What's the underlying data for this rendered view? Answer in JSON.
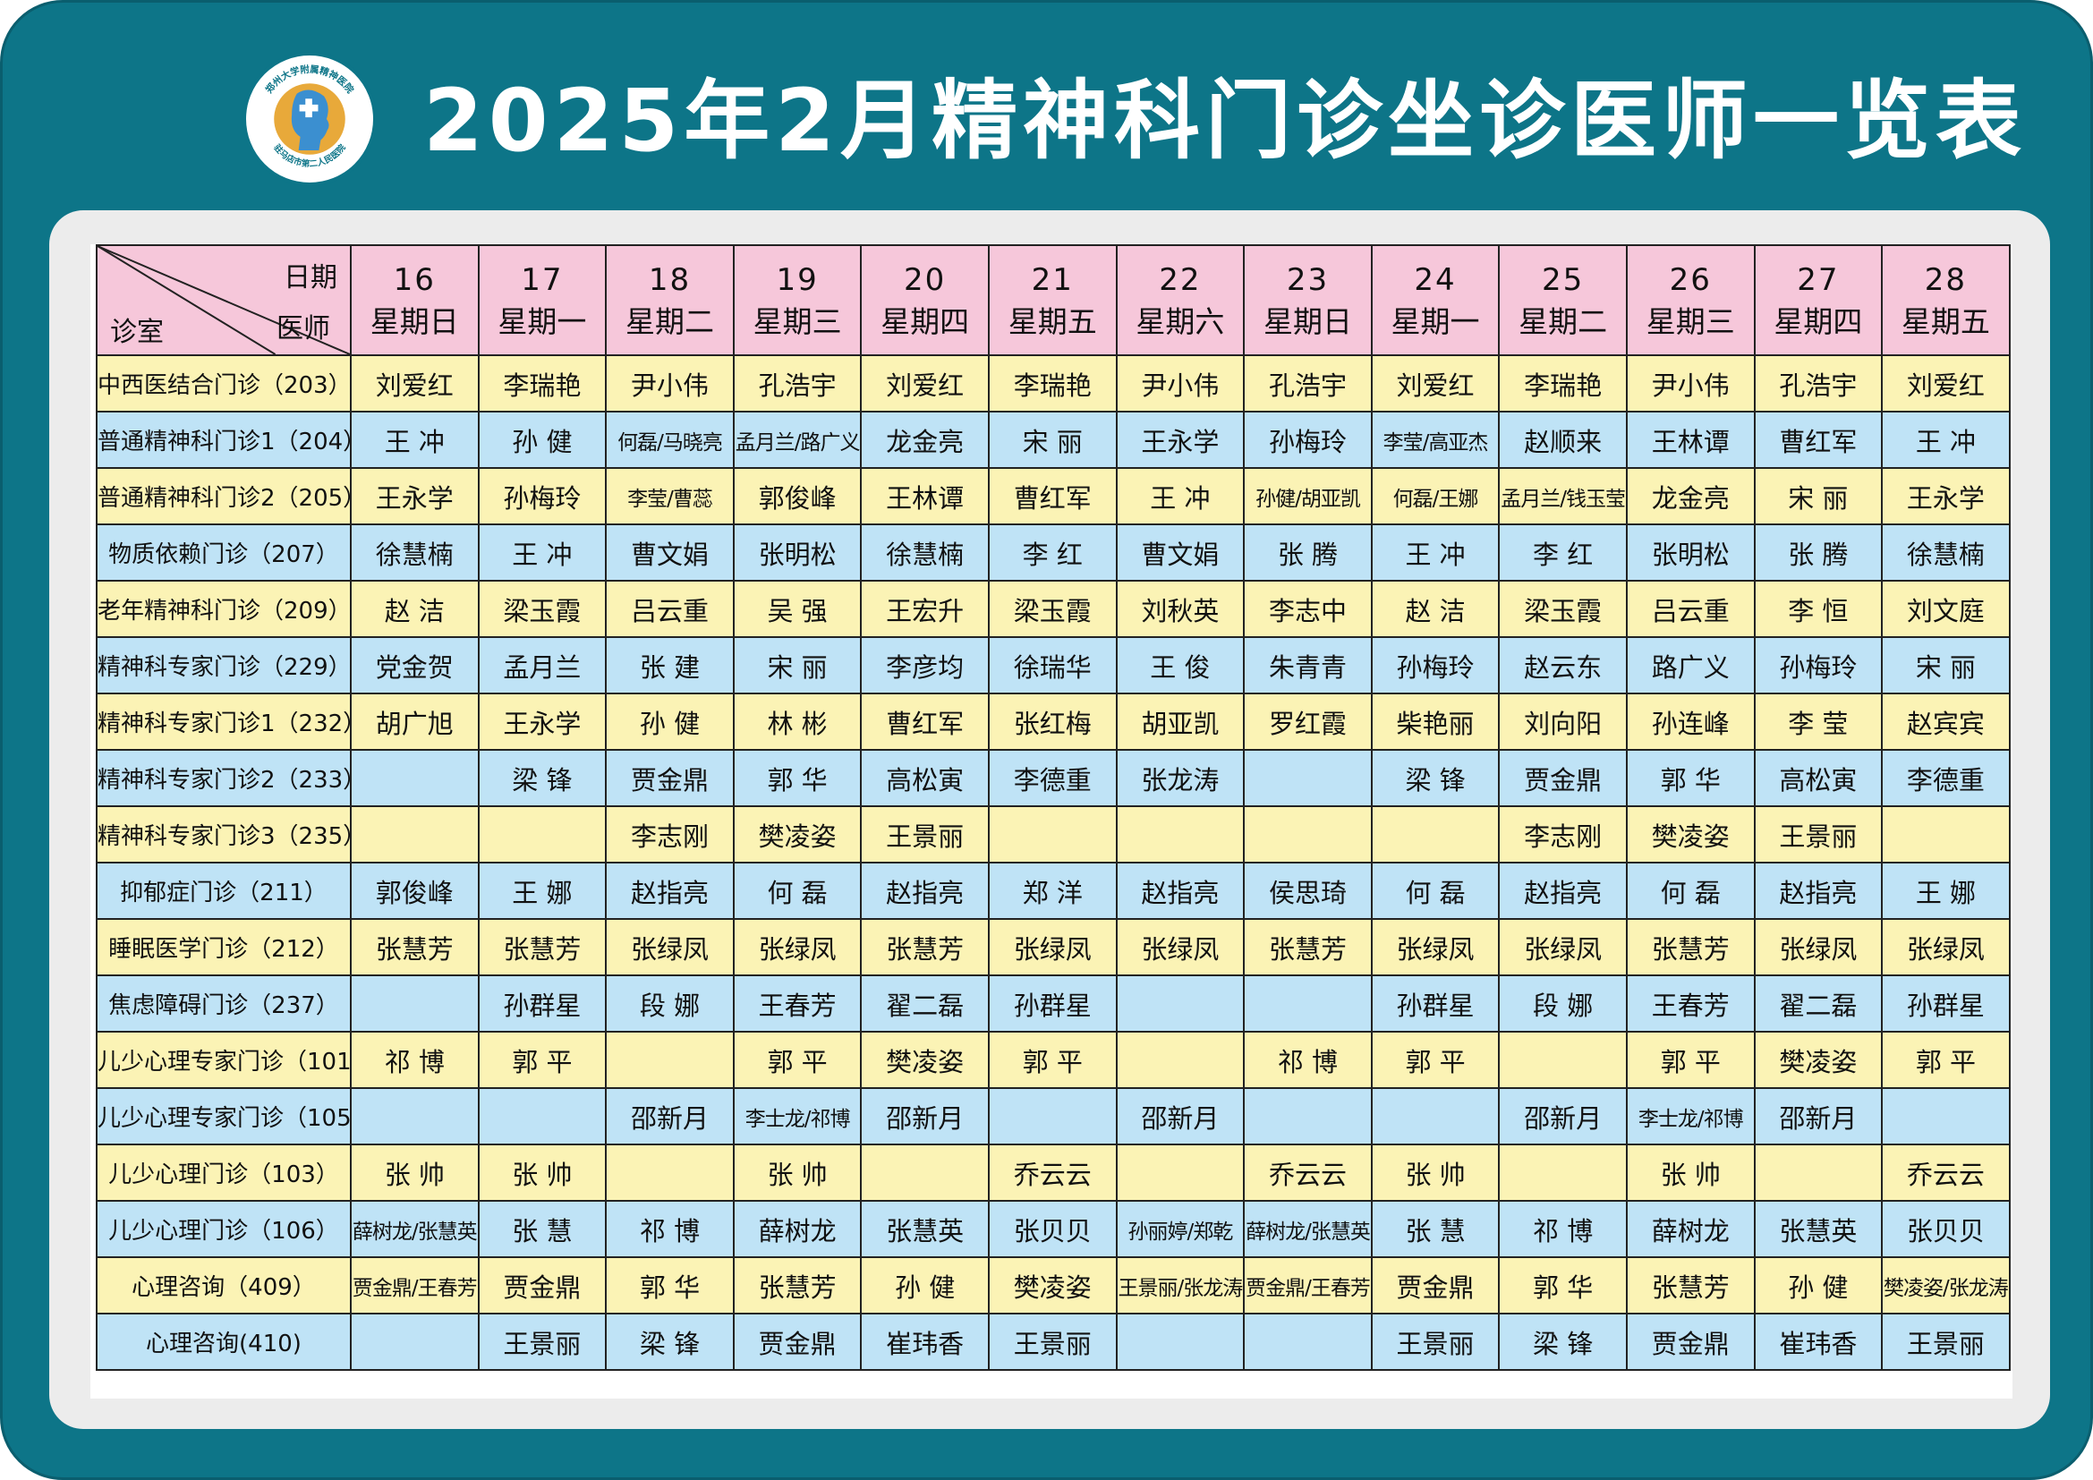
{
  "title": "2025年2月精神科门诊坐诊医师一览表",
  "logo": {
    "text_top": "郑州大学附属精神医院",
    "text_bottom": "驻马店市第二人民医院"
  },
  "corner": {
    "date_label": "日期",
    "doctor_label": "医师",
    "room_label": "诊室"
  },
  "days": [
    {
      "date": "16",
      "weekday": "星期日"
    },
    {
      "date": "17",
      "weekday": "星期一"
    },
    {
      "date": "18",
      "weekday": "星期二"
    },
    {
      "date": "19",
      "weekday": "星期三"
    },
    {
      "date": "20",
      "weekday": "星期四"
    },
    {
      "date": "21",
      "weekday": "星期五"
    },
    {
      "date": "22",
      "weekday": "星期六"
    },
    {
      "date": "23",
      "weekday": "星期日"
    },
    {
      "date": "24",
      "weekday": "星期一"
    },
    {
      "date": "25",
      "weekday": "星期二"
    },
    {
      "date": "26",
      "weekday": "星期三"
    },
    {
      "date": "27",
      "weekday": "星期四"
    },
    {
      "date": "28",
      "weekday": "星期五"
    }
  ],
  "rows": [
    {
      "room": "中西医结合门诊（203）",
      "doctors": [
        "刘爱红",
        "李瑞艳",
        "尹小伟",
        "孔浩宇",
        "刘爱红",
        "李瑞艳",
        "尹小伟",
        "孔浩宇",
        "刘爱红",
        "李瑞艳",
        "尹小伟",
        "孔浩宇",
        "刘爱红"
      ]
    },
    {
      "room": "普通精神科门诊1（204）",
      "doctors": [
        "王 冲",
        "孙 健",
        "何磊/马晓亮",
        "孟月兰/路广义",
        "龙金亮",
        "宋 丽",
        "王永学",
        "孙梅玲",
        "李莹/高亚杰",
        "赵顺来",
        "王林谭",
        "曹红军",
        "王 冲"
      ]
    },
    {
      "room": "普通精神科门诊2（205）",
      "doctors": [
        "王永学",
        "孙梅玲",
        "李莹/曹蕊",
        "郭俊峰",
        "王林谭",
        "曹红军",
        "王 冲",
        "孙健/胡亚凯",
        "何磊/王娜",
        "孟月兰/钱玉莹",
        "龙金亮",
        "宋 丽",
        "王永学"
      ]
    },
    {
      "room": "物质依赖门诊（207）",
      "doctors": [
        "徐慧楠",
        "王 冲",
        "曹文娟",
        "张明松",
        "徐慧楠",
        "李 红",
        "曹文娟",
        "张 腾",
        "王 冲",
        "李 红",
        "张明松",
        "张 腾",
        "徐慧楠"
      ]
    },
    {
      "room": "老年精神科门诊（209）",
      "doctors": [
        "赵 洁",
        "梁玉霞",
        "吕云重",
        "吴 强",
        "王宏升",
        "梁玉霞",
        "刘秋英",
        "李志中",
        "赵 洁",
        "梁玉霞",
        "吕云重",
        "李 恒",
        "刘文庭"
      ]
    },
    {
      "room": "精神科专家门诊（229）",
      "doctors": [
        "党金贺",
        "孟月兰",
        "张 建",
        "宋 丽",
        "李彦均",
        "徐瑞华",
        "王 俊",
        "朱青青",
        "孙梅玲",
        "赵云东",
        "路广义",
        "孙梅玲",
        "宋 丽"
      ]
    },
    {
      "room": "精神科专家门诊1（232）",
      "doctors": [
        "胡广旭",
        "王永学",
        "孙 健",
        "林 彬",
        "曹红军",
        "张红梅",
        "胡亚凯",
        "罗红霞",
        "柴艳丽",
        "刘向阳",
        "孙连峰",
        "李 莹",
        "赵宾宾"
      ]
    },
    {
      "room": "精神科专家门诊2（233）",
      "doctors": [
        "",
        "梁 锋",
        "贾金鼎",
        "郭 华",
        "高松寅",
        "李德重",
        "张龙涛",
        "",
        "梁 锋",
        "贾金鼎",
        "郭 华",
        "高松寅",
        "李德重"
      ]
    },
    {
      "room": "精神科专家门诊3（235）",
      "doctors": [
        "",
        "",
        "李志刚",
        "樊凌姿",
        "王景丽",
        "",
        "",
        "",
        "",
        "李志刚",
        "樊凌姿",
        "王景丽",
        ""
      ]
    },
    {
      "room": "抑郁症门诊（211）",
      "doctors": [
        "郭俊峰",
        "王 娜",
        "赵指亮",
        "何 磊",
        "赵指亮",
        "郑 洋",
        "赵指亮",
        "侯思琦",
        "何 磊",
        "赵指亮",
        "何 磊",
        "赵指亮",
        "王 娜"
      ]
    },
    {
      "room": "睡眠医学门诊（212）",
      "doctors": [
        "张慧芳",
        "张慧芳",
        "张绿凤",
        "张绿凤",
        "张慧芳",
        "张绿凤",
        "张绿凤",
        "张慧芳",
        "张绿凤",
        "张绿凤",
        "张慧芳",
        "张绿凤",
        "张绿凤"
      ]
    },
    {
      "room": "焦虑障碍门诊（237）",
      "doctors": [
        "",
        "孙群星",
        "段 娜",
        "王春芳",
        "翟二磊",
        "孙群星",
        "",
        "",
        "孙群星",
        "段 娜",
        "王春芳",
        "翟二磊",
        "孙群星"
      ]
    },
    {
      "room": "儿少心理专家门诊（101）",
      "doctors": [
        "祁 博",
        "郭 平",
        "",
        "郭 平",
        "樊凌姿",
        "郭 平",
        "",
        "祁 博",
        "郭 平",
        "",
        "郭 平",
        "樊凌姿",
        "郭 平"
      ]
    },
    {
      "room": "儿少心理专家门诊（105）",
      "doctors": [
        "",
        "",
        "邵新月",
        "李士龙/祁博",
        "邵新月",
        "",
        "邵新月",
        "",
        "",
        "邵新月",
        "李士龙/祁博",
        "邵新月",
        ""
      ]
    },
    {
      "room": "儿少心理门诊（103）",
      "doctors": [
        "张 帅",
        "张 帅",
        "",
        "张 帅",
        "",
        "乔云云",
        "",
        "乔云云",
        "张 帅",
        "",
        "张 帅",
        "",
        "乔云云"
      ]
    },
    {
      "room": "儿少心理门诊（106）",
      "doctors": [
        "薛树龙/张慧英",
        "张 慧",
        "祁 博",
        "薛树龙",
        "张慧英",
        "张贝贝",
        "孙丽婷/郑乾",
        "薛树龙/张慧英",
        "张 慧",
        "祁 博",
        "薛树龙",
        "张慧英",
        "张贝贝"
      ]
    },
    {
      "room": "心理咨询（409）",
      "doctors": [
        "贾金鼎/王春芳",
        "贾金鼎",
        "郭 华",
        "张慧芳",
        "孙 健",
        "樊凌姿",
        "王景丽/张龙涛",
        "贾金鼎/王春芳",
        "贾金鼎",
        "郭 华",
        "张慧芳",
        "孙 健",
        "樊凌姿/张龙涛"
      ]
    },
    {
      "room": "心理咨询(410)",
      "doctors": [
        "",
        "王景丽",
        "梁 锋",
        "贾金鼎",
        "崔玮香",
        "王景丽",
        "",
        "",
        "王景丽",
        "梁 锋",
        "贾金鼎",
        "崔玮香",
        "王景丽"
      ]
    }
  ]
}
